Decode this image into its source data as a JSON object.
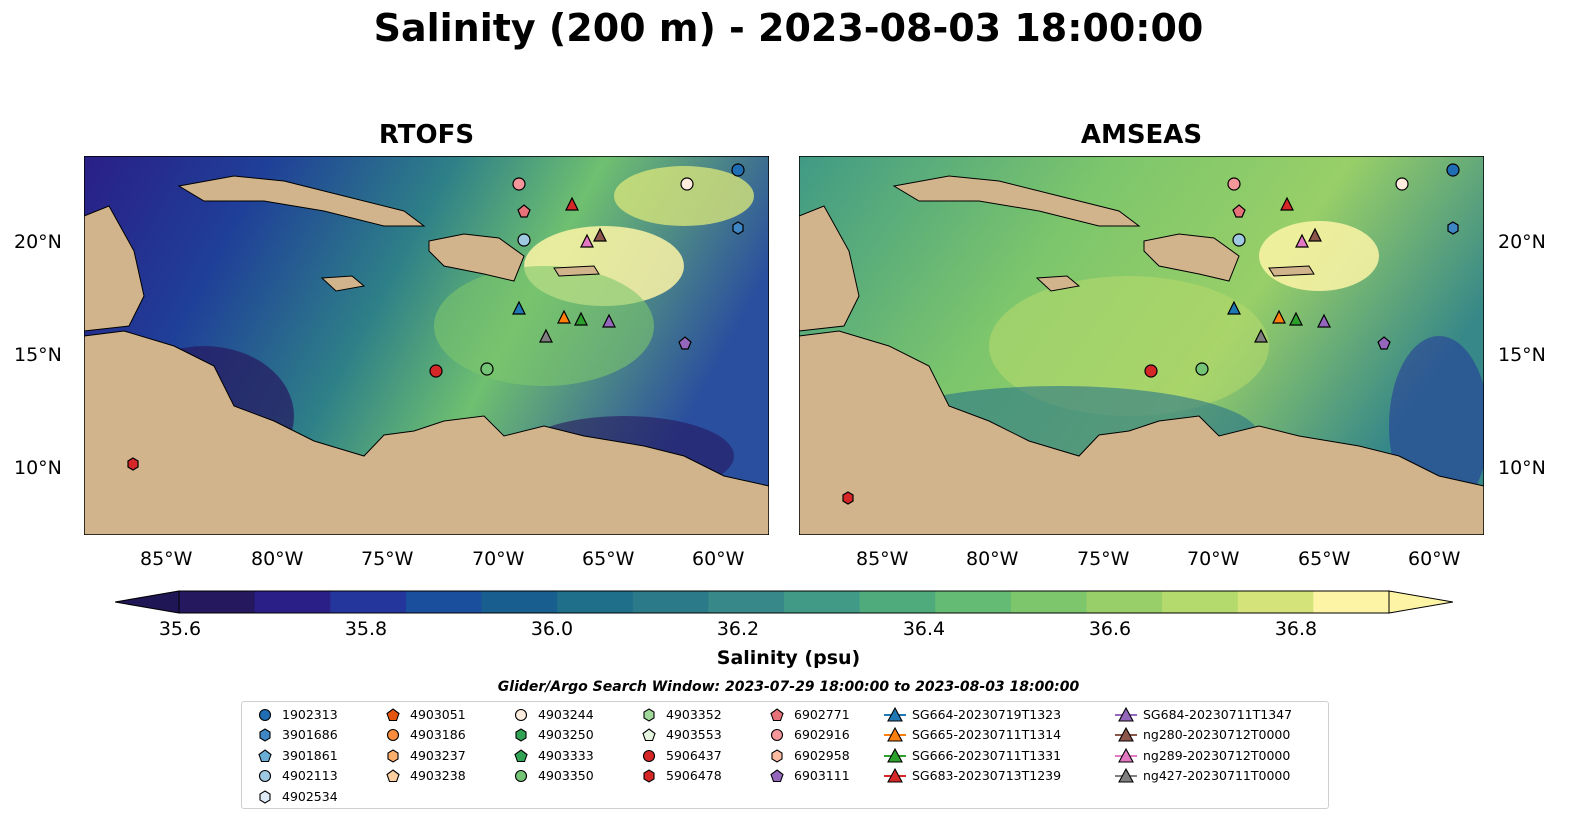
{
  "title": "Salinity (200 m) - 2023-08-03 18:00:00",
  "panels": [
    {
      "title": "RTOFS"
    },
    {
      "title": "AMSEAS"
    }
  ],
  "axes": {
    "x_ticks": [
      "85°W",
      "80°W",
      "75°W",
      "70°W",
      "65°W",
      "60°W"
    ],
    "y_ticks": [
      "20°N",
      "15°N",
      "10°N"
    ]
  },
  "colorbar": {
    "label": "Salinity (psu)",
    "ticks": [
      "35.6",
      "35.8",
      "36.0",
      "36.2",
      "36.4",
      "36.6",
      "36.8"
    ],
    "colors": [
      "#26185f",
      "#2a1f86",
      "#24359c",
      "#1a4f9e",
      "#185f8f",
      "#1f6e8a",
      "#2b7a89",
      "#378888",
      "#409a85",
      "#4fab7c",
      "#63bb74",
      "#7dc66c",
      "#98cf68",
      "#b4d96d",
      "#d4e47a",
      "#fdf4a6"
    ]
  },
  "search_window": "Glider/Argo Search Window: 2023-07-29 18:00:00 to 2023-08-03 18:00:00",
  "legend": {
    "columns": [
      [
        {
          "label": "1902313",
          "marker": "circle",
          "color": "#1f6db3"
        },
        {
          "label": "3901686",
          "marker": "hexagon",
          "color": "#3f87c4"
        },
        {
          "label": "3901861",
          "marker": "pentagon",
          "color": "#6aaed6"
        },
        {
          "label": "4902113",
          "marker": "circle",
          "color": "#9ecae1"
        },
        {
          "label": "4902534",
          "marker": "hexagon",
          "color": "#deebf7"
        }
      ],
      [
        {
          "label": "4903051",
          "marker": "pentagon",
          "color": "#e6550d"
        },
        {
          "label": "4903186",
          "marker": "circle",
          "color": "#fd8d3c"
        },
        {
          "label": "4903237",
          "marker": "hexagon",
          "color": "#fdae6b"
        },
        {
          "label": "4903238",
          "marker": "pentagon",
          "color": "#fdd0a2"
        }
      ],
      [
        {
          "label": "4903244",
          "marker": "circle",
          "color": "#feedde"
        },
        {
          "label": "4903250",
          "marker": "hexagon",
          "color": "#31a354"
        },
        {
          "label": "4903333",
          "marker": "pentagon",
          "color": "#31a354"
        },
        {
          "label": "4903350",
          "marker": "circle",
          "color": "#74c476"
        }
      ],
      [
        {
          "label": "4903352",
          "marker": "hexagon",
          "color": "#a1d99b"
        },
        {
          "label": "4903553",
          "marker": "pentagon",
          "color": "#e5f5e0"
        },
        {
          "label": "5906437",
          "marker": "circle",
          "color": "#d62728"
        },
        {
          "label": "5906478",
          "marker": "hexagon",
          "color": "#d62728"
        }
      ],
      [
        {
          "label": "6902771",
          "marker": "pentagon",
          "color": "#e7737a"
        },
        {
          "label": "6902916",
          "marker": "circle",
          "color": "#f4979b"
        },
        {
          "label": "6902958",
          "marker": "hexagon",
          "color": "#fcbba1"
        },
        {
          "label": "6903111",
          "marker": "pentagon",
          "color": "#9467bd"
        }
      ],
      [
        {
          "label": "SG664-20230719T1323",
          "marker": "triangle",
          "color": "#1f77b4",
          "line": true
        },
        {
          "label": "SG665-20230711T1314",
          "marker": "triangle",
          "color": "#ff7f0e",
          "line": true
        },
        {
          "label": "SG666-20230711T1331",
          "marker": "triangle",
          "color": "#2ca02c",
          "line": true
        },
        {
          "label": "SG683-20230713T1239",
          "marker": "triangle",
          "color": "#d62728",
          "line": true
        }
      ],
      [
        {
          "label": "SG684-20230711T1347",
          "marker": "triangle",
          "color": "#9467bd",
          "line": true
        },
        {
          "label": "ng280-20230712T0000",
          "marker": "triangle",
          "color": "#8c564b",
          "line": true
        },
        {
          "label": "ng289-20230712T0000",
          "marker": "triangle",
          "color": "#e377c2",
          "line": true
        },
        {
          "label": "ng427-20230711T0000",
          "marker": "triangle",
          "color": "#7f7f7f",
          "line": true
        }
      ]
    ]
  }
}
